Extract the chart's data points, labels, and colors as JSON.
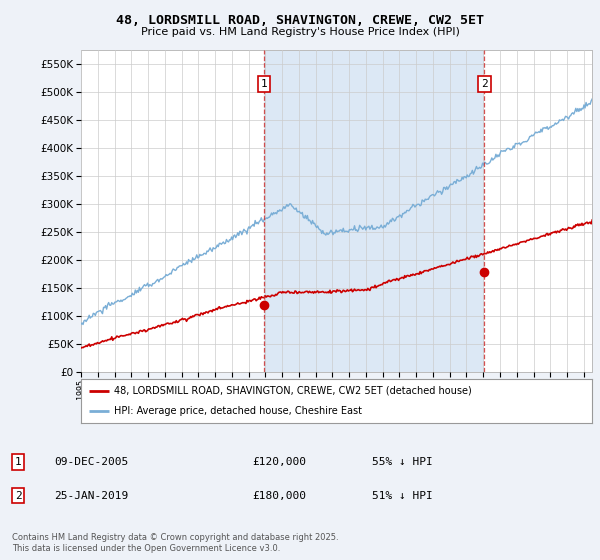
{
  "title1": "48, LORDSMILL ROAD, SHAVINGTON, CREWE, CW2 5ET",
  "title2": "Price paid vs. HM Land Registry's House Price Index (HPI)",
  "legend_label_red": "48, LORDSMILL ROAD, SHAVINGTON, CREWE, CW2 5ET (detached house)",
  "legend_label_blue": "HPI: Average price, detached house, Cheshire East",
  "annotation1_label": "1",
  "annotation1_date": "09-DEC-2005",
  "annotation1_price": "£120,000",
  "annotation1_hpi": "55% ↓ HPI",
  "annotation2_label": "2",
  "annotation2_date": "25-JAN-2019",
  "annotation2_price": "£180,000",
  "annotation2_hpi": "51% ↓ HPI",
  "footnote": "Contains HM Land Registry data © Crown copyright and database right 2025.\nThis data is licensed under the Open Government Licence v3.0.",
  "ylim": [
    0,
    575000
  ],
  "yticks": [
    0,
    50000,
    100000,
    150000,
    200000,
    250000,
    300000,
    350000,
    400000,
    450000,
    500000,
    550000
  ],
  "year_start": 1995,
  "year_end": 2025,
  "purchase1_year": 2005.93,
  "purchase1_price": 120000,
  "purchase2_year": 2019.07,
  "purchase2_price": 180000,
  "bg_color": "#eef2f8",
  "plot_bg_color": "#ffffff",
  "red_color": "#cc0000",
  "blue_color": "#7aaed6",
  "shade_color": "#dce8f5"
}
